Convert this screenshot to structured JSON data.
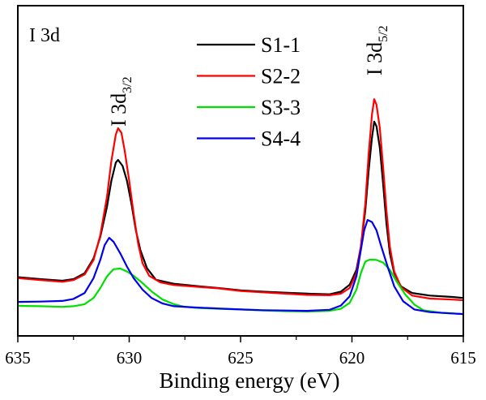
{
  "chart_data": {
    "type": "line",
    "title": "",
    "panel_label": "I 3d",
    "xlabel": "Binding energy (eV)",
    "ylabel": "",
    "xlim": [
      635,
      615
    ],
    "ylim": [
      0,
      100
    ],
    "x_reversed": true,
    "x_ticks": [
      635,
      630,
      625,
      620,
      615
    ],
    "x_tick_labels": [
      "635",
      "630",
      "625",
      "620",
      "615"
    ],
    "y_ticks_visible": false,
    "grid": false,
    "legend": {
      "placement": "top-center",
      "entries": [
        "S1-1",
        "S2-2",
        "S3-3",
        "S4-4"
      ]
    },
    "annotations": [
      {
        "main": "I 3d",
        "sub": "3/2",
        "x": 630.5,
        "orientation": "vertical"
      },
      {
        "main": "I 3d",
        "sub": "5/2",
        "x": 619.0,
        "orientation": "vertical"
      }
    ],
    "series": [
      {
        "name": "S1-1",
        "color": "#000000",
        "points": [
          [
            635,
            17.8
          ],
          [
            634,
            17.2
          ],
          [
            633,
            16.7
          ],
          [
            632.5,
            17.2
          ],
          [
            632,
            19.0
          ],
          [
            631.6,
            23.5
          ],
          [
            631.3,
            30
          ],
          [
            631,
            39
          ],
          [
            630.8,
            47
          ],
          [
            630.6,
            52.5
          ],
          [
            630.5,
            53.3
          ],
          [
            630.3,
            51.5
          ],
          [
            630.1,
            47
          ],
          [
            629.9,
            40
          ],
          [
            629.7,
            32
          ],
          [
            629.5,
            26
          ],
          [
            629.2,
            20.5
          ],
          [
            628.8,
            17.0
          ],
          [
            628,
            15.8
          ],
          [
            627,
            15.1
          ],
          [
            626,
            14.5
          ],
          [
            625,
            13.8
          ],
          [
            624,
            13.4
          ],
          [
            623,
            13.1
          ],
          [
            622,
            12.8
          ],
          [
            621,
            12.6
          ],
          [
            620.5,
            13.4
          ],
          [
            620.1,
            15.5
          ],
          [
            619.8,
            20
          ],
          [
            619.6,
            27
          ],
          [
            619.4,
            38
          ],
          [
            619.25,
            50
          ],
          [
            619.1,
            60
          ],
          [
            619.0,
            64.9
          ],
          [
            618.9,
            63.5
          ],
          [
            618.75,
            57
          ],
          [
            618.6,
            46
          ],
          [
            618.45,
            34
          ],
          [
            618.3,
            25
          ],
          [
            618.1,
            19
          ],
          [
            617.8,
            15.0
          ],
          [
            617.3,
            13.0
          ],
          [
            616.5,
            12.2
          ],
          [
            615.5,
            11.8
          ],
          [
            615,
            11.5
          ]
        ]
      },
      {
        "name": "S2-2",
        "color": "#ff0000",
        "points": [
          [
            635,
            17.5
          ],
          [
            634,
            16.9
          ],
          [
            633,
            16.4
          ],
          [
            632.5,
            16.9
          ],
          [
            632,
            18.6
          ],
          [
            631.6,
            23
          ],
          [
            631.3,
            30.5
          ],
          [
            631,
            42
          ],
          [
            630.8,
            53
          ],
          [
            630.6,
            61
          ],
          [
            630.5,
            62.9
          ],
          [
            630.35,
            61.5
          ],
          [
            630.2,
            56
          ],
          [
            630,
            47
          ],
          [
            629.8,
            37
          ],
          [
            629.6,
            28
          ],
          [
            629.4,
            22
          ],
          [
            629.1,
            18.2
          ],
          [
            628.6,
            16.2
          ],
          [
            628,
            15.4
          ],
          [
            627,
            14.9
          ],
          [
            626,
            14.4
          ],
          [
            625,
            13.6
          ],
          [
            624,
            13.2
          ],
          [
            623,
            12.8
          ],
          [
            622,
            12.4
          ],
          [
            621,
            12.3
          ],
          [
            620.5,
            12.8
          ],
          [
            620.1,
            14.5
          ],
          [
            619.8,
            19
          ],
          [
            619.6,
            27
          ],
          [
            619.4,
            40
          ],
          [
            619.25,
            55
          ],
          [
            619.1,
            67
          ],
          [
            619.0,
            71.7
          ],
          [
            618.9,
            70
          ],
          [
            618.75,
            63
          ],
          [
            618.6,
            51
          ],
          [
            618.45,
            38
          ],
          [
            618.3,
            27
          ],
          [
            618.1,
            19.5
          ],
          [
            617.8,
            14.8
          ],
          [
            617.3,
            12.2
          ],
          [
            616.5,
            11.3
          ],
          [
            615.5,
            11.0
          ],
          [
            615,
            10.8
          ]
        ]
      },
      {
        "name": "S3-3",
        "color": "#00e000",
        "points": [
          [
            635,
            9.1
          ],
          [
            634,
            9.0
          ],
          [
            633,
            8.8
          ],
          [
            632.5,
            9.0
          ],
          [
            632,
            9.6
          ],
          [
            631.6,
            11.5
          ],
          [
            631.3,
            14.5
          ],
          [
            631,
            18
          ],
          [
            630.7,
            20.2
          ],
          [
            630.4,
            20.4
          ],
          [
            630.1,
            19.5
          ],
          [
            629.8,
            18.2
          ],
          [
            629.4,
            16.0
          ],
          [
            629,
            13.5
          ],
          [
            628.5,
            11.0
          ],
          [
            628,
            9.6
          ],
          [
            627.5,
            8.8
          ],
          [
            627,
            8.5
          ],
          [
            626,
            8.2
          ],
          [
            625,
            8.0
          ],
          [
            624,
            7.7
          ],
          [
            623,
            7.5
          ],
          [
            622,
            7.4
          ],
          [
            621,
            7.6
          ],
          [
            620.5,
            8.2
          ],
          [
            620.1,
            10
          ],
          [
            619.8,
            14
          ],
          [
            619.6,
            19
          ],
          [
            619.4,
            22.5
          ],
          [
            619.2,
            23.1
          ],
          [
            618.9,
            23.0
          ],
          [
            618.6,
            22.2
          ],
          [
            618.3,
            20.0
          ],
          [
            618,
            16.5
          ],
          [
            617.6,
            12.5
          ],
          [
            617.2,
            9.5
          ],
          [
            616.8,
            7.8
          ],
          [
            616,
            7.0
          ],
          [
            615,
            6.6
          ]
        ]
      },
      {
        "name": "S4-4",
        "color": "#0000ee",
        "points": [
          [
            635,
            10.3
          ],
          [
            634,
            10.4
          ],
          [
            633,
            10.6
          ],
          [
            632.5,
            11.2
          ],
          [
            632,
            13.0
          ],
          [
            631.6,
            17.5
          ],
          [
            631.3,
            23
          ],
          [
            631.1,
            27.5
          ],
          [
            630.9,
            29.7
          ],
          [
            630.7,
            28.5
          ],
          [
            630.4,
            25
          ],
          [
            630.1,
            21
          ],
          [
            629.8,
            17.5
          ],
          [
            629.4,
            14.0
          ],
          [
            629,
            11.5
          ],
          [
            628.5,
            9.8
          ],
          [
            628,
            9.0
          ],
          [
            627,
            8.6
          ],
          [
            626,
            8.3
          ],
          [
            625,
            8.0
          ],
          [
            624,
            7.8
          ],
          [
            623,
            7.7
          ],
          [
            622,
            7.6
          ],
          [
            621,
            7.9
          ],
          [
            620.5,
            9.2
          ],
          [
            620.1,
            12
          ],
          [
            619.8,
            18
          ],
          [
            619.6,
            26
          ],
          [
            619.45,
            32
          ],
          [
            619.3,
            35.1
          ],
          [
            619.1,
            34.5
          ],
          [
            618.9,
            32
          ],
          [
            618.7,
            27.5
          ],
          [
            618.4,
            21
          ],
          [
            618.1,
            15
          ],
          [
            617.7,
            10.5
          ],
          [
            617.2,
            8.0
          ],
          [
            616.5,
            7.2
          ],
          [
            615.5,
            6.8
          ],
          [
            615,
            6.6
          ]
        ]
      }
    ]
  }
}
